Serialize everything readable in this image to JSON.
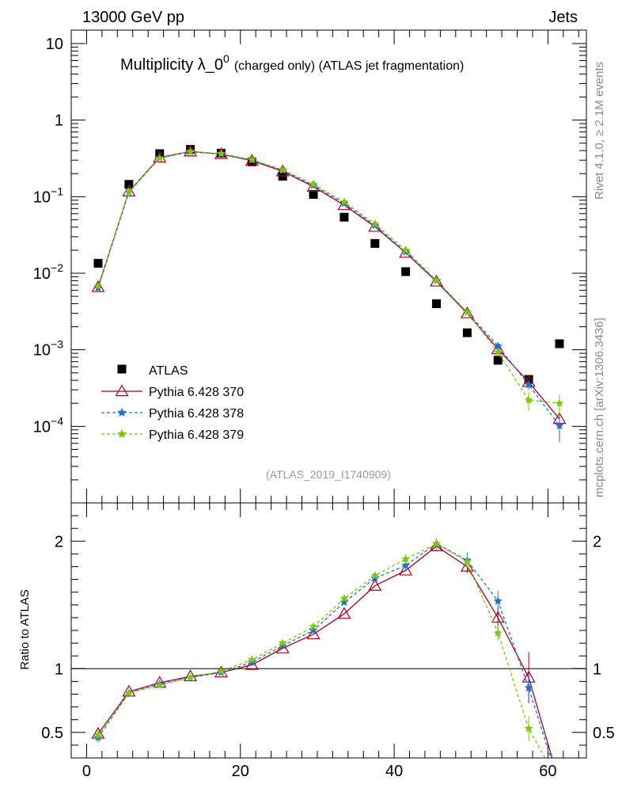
{
  "header": {
    "left": "13000 GeV pp",
    "right": "Jets"
  },
  "side": {
    "rivet": "Rivet 4.1.0, ≥ 2.1M events",
    "mcplots": "mcplots.cern.ch [arXiv:1306.3436]"
  },
  "chart_data": [
    {
      "type": "scatter",
      "panel": "main",
      "title": "Multiplicity λ_0",
      "title_sup": "0",
      "title_suffix": "(charged only) (ATLAS jet fragmentation)",
      "analysis": "(ATLAS_2019_I1740909)",
      "yscale": "log",
      "xlim": [
        -2,
        65
      ],
      "ylim": [
        1e-05,
        15
      ],
      "yticks": [
        {
          "v": 10,
          "label": "10",
          "sup": ""
        },
        {
          "v": 1,
          "label": "1",
          "sup": ""
        },
        {
          "v": 0.1,
          "label": "10",
          "sup": "−1"
        },
        {
          "v": 0.01,
          "label": "10",
          "sup": "−2"
        },
        {
          "v": 0.001,
          "label": "10",
          "sup": "−3"
        },
        {
          "v": 0.0001,
          "label": "10",
          "sup": "−4"
        }
      ],
      "x": [
        1.5,
        5.5,
        9.5,
        13.5,
        17.5,
        21.5,
        25.5,
        29.5,
        33.5,
        37.5,
        41.5,
        45.5,
        49.5,
        53.5,
        57.5,
        61.5
      ],
      "series": [
        {
          "name": "ATLAS",
          "style": "square",
          "color": "#000000",
          "values": [
            0.0135,
            0.145,
            0.365,
            0.415,
            0.37,
            0.285,
            0.185,
            0.107,
            0.054,
            0.0245,
            0.0105,
            0.004,
            0.00167,
            0.00073,
            0.00041,
            0.0012
          ]
        },
        {
          "name": "Pythia 6.428 370",
          "style": "triangle",
          "color": "#a50021",
          "dash": "",
          "values": [
            0.0066,
            0.117,
            0.325,
            0.39,
            0.36,
            0.295,
            0.215,
            0.135,
            0.0775,
            0.0405,
            0.0185,
            0.0078,
            0.003,
            0.00102,
            0.00038,
            0.000125
          ],
          "errors": [
            0,
            0,
            0,
            0,
            0,
            0,
            0,
            0,
            0,
            0,
            0,
            0,
            0,
            0,
            4e-05,
            3.5e-05
          ]
        },
        {
          "name": "Pythia 6.428 378",
          "style": "star",
          "color": "#1f6fd1",
          "dash": "4,3",
          "values": [
            0.0064,
            0.115,
            0.32,
            0.385,
            0.36,
            0.3,
            0.22,
            0.14,
            0.082,
            0.042,
            0.019,
            0.008,
            0.0031,
            0.00112,
            0.00035,
            0.000102
          ],
          "errors": [
            0,
            0,
            0,
            0,
            0,
            0,
            0,
            0,
            0,
            0,
            0,
            0,
            0,
            0.00012,
            5e-05,
            4e-05
          ]
        },
        {
          "name": "Pythia 6.428 379",
          "style": "star",
          "color": "#7ac70c",
          "dash": "4,3",
          "values": [
            0.0068,
            0.116,
            0.318,
            0.39,
            0.365,
            0.305,
            0.225,
            0.145,
            0.085,
            0.044,
            0.02,
            0.0081,
            0.0031,
            0.00093,
            0.00022,
            0.0002
          ],
          "errors": [
            0,
            0,
            0,
            0,
            0,
            0,
            0,
            0,
            0,
            0,
            0,
            0,
            0,
            0.0001,
            6e-05,
            6e-05
          ]
        }
      ]
    },
    {
      "type": "line",
      "panel": "ratio",
      "ylabel": "Ratio to ATLAS",
      "xlim": [
        -2,
        65
      ],
      "ylim": [
        0.3,
        2.3
      ],
      "xticks": [
        0,
        20,
        40,
        60
      ],
      "yticks": [
        {
          "v": 0.5,
          "label": "0.5"
        },
        {
          "v": 1,
          "label": "1"
        },
        {
          "v": 2,
          "label": "2"
        }
      ],
      "x": [
        1.5,
        5.5,
        9.5,
        13.5,
        17.5,
        21.5,
        25.5,
        29.5,
        33.5,
        37.5,
        41.5,
        45.5,
        49.5,
        53.5,
        57.5,
        61.5
      ],
      "series": [
        {
          "name": "Pythia 6.428 370",
          "style": "triangle",
          "color": "#a50021",
          "values": [
            0.49,
            0.82,
            0.89,
            0.94,
            0.97,
            1.03,
            1.16,
            1.27,
            1.43,
            1.65,
            1.77,
            1.96,
            1.8,
            1.4,
            0.93,
            0.1
          ],
          "errors": [
            0.03,
            0,
            0,
            0,
            0,
            0,
            0,
            0,
            0,
            0,
            0,
            0.04,
            0.05,
            0.08,
            0.2,
            0
          ]
        },
        {
          "name": "Pythia 6.428 378",
          "style": "star",
          "color": "#1f6fd1",
          "values": [
            0.46,
            0.81,
            0.88,
            0.93,
            0.97,
            1.05,
            1.18,
            1.3,
            1.52,
            1.71,
            1.81,
            1.98,
            1.85,
            1.53,
            0.85,
            0.08
          ],
          "errors": [
            0.04,
            0,
            0,
            0,
            0,
            0,
            0,
            0,
            0,
            0,
            0.04,
            0.04,
            0.06,
            0.08,
            0.1,
            0
          ]
        },
        {
          "name": "Pythia 6.428 379",
          "style": "star",
          "color": "#7ac70c",
          "values": [
            0.48,
            0.81,
            0.87,
            0.93,
            0.98,
            1.07,
            1.2,
            1.33,
            1.55,
            1.73,
            1.86,
            1.98,
            1.84,
            1.28,
            0.53,
            0.1
          ],
          "errors": [
            0.04,
            0,
            0,
            0,
            0,
            0,
            0,
            0,
            0,
            0,
            0.04,
            0.05,
            0.05,
            0.06,
            0.1,
            0
          ]
        }
      ]
    }
  ]
}
